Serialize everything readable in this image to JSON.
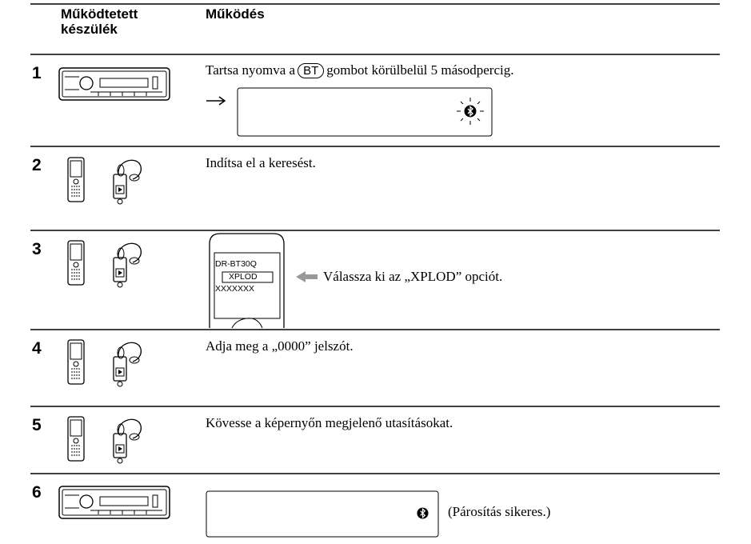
{
  "table": {
    "headers": [
      "Működtetett készülék",
      "Működés"
    ],
    "rows": [
      {
        "step": "1",
        "text_before": "Tartsa nyomva a",
        "button": "BT",
        "text_after": "gombot körülbelül 5 másodpercig."
      },
      {
        "step": "2",
        "text": "Indítsa el a keresést."
      },
      {
        "step": "3",
        "screen": [
          "DR-BT30Q",
          "XPLOD",
          "XXXXXXX"
        ],
        "text": "Válassza ki az „XPLOD” opciót."
      },
      {
        "step": "4",
        "text": "Adja meg a „0000” jelszót."
      },
      {
        "step": "5",
        "text": "Kövesse a képernyőn megjelenő utasításokat."
      },
      {
        "step": "6",
        "text": "(Párosítás sikeres.)"
      }
    ]
  }
}
